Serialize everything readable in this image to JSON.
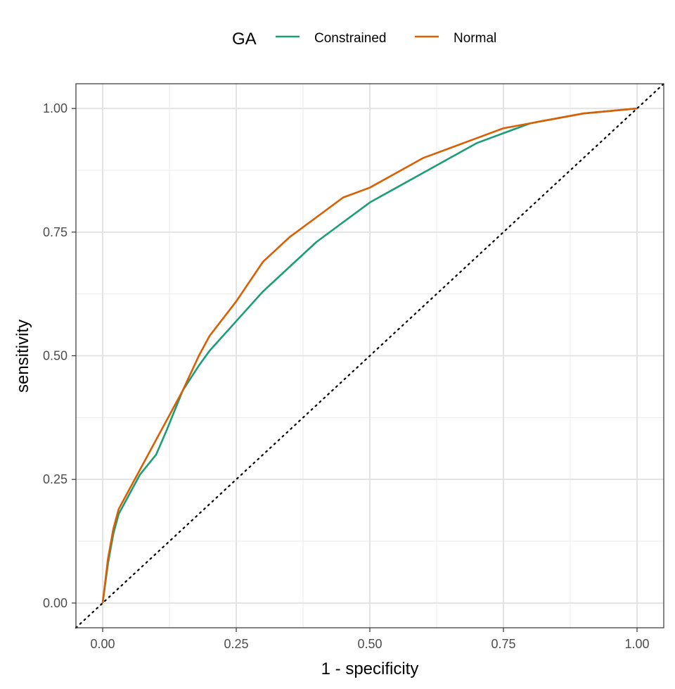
{
  "chart_data": {
    "type": "line",
    "xlabel": "1 - specificity",
    "ylabel": "sensitivity",
    "legend_title": "GA",
    "legend_position": "top",
    "grid": true,
    "xlim": [
      -0.05,
      1.05
    ],
    "ylim": [
      -0.05,
      1.05
    ],
    "x_ticks": [
      "0.00",
      "0.25",
      "0.50",
      "0.75",
      "1.00"
    ],
    "y_ticks": [
      "0.00",
      "0.25",
      "0.50",
      "0.75",
      "1.00"
    ],
    "reference_line": {
      "style": "dotted",
      "slope": 1,
      "intercept": 0,
      "color": "#000000"
    },
    "series": [
      {
        "name": "Constrained",
        "color": "#1b9e77",
        "x": [
          0.0,
          0.01,
          0.02,
          0.03,
          0.05,
          0.07,
          0.1,
          0.12,
          0.15,
          0.18,
          0.2,
          0.25,
          0.3,
          0.35,
          0.4,
          0.45,
          0.5,
          0.55,
          0.6,
          0.65,
          0.7,
          0.75,
          0.8,
          0.85,
          0.9,
          0.95,
          1.0
        ],
        "y": [
          0.0,
          0.08,
          0.14,
          0.18,
          0.22,
          0.26,
          0.3,
          0.35,
          0.43,
          0.48,
          0.51,
          0.57,
          0.63,
          0.68,
          0.73,
          0.77,
          0.81,
          0.84,
          0.87,
          0.9,
          0.93,
          0.95,
          0.97,
          0.98,
          0.99,
          0.995,
          1.0
        ]
      },
      {
        "name": "Normal",
        "color": "#d95f02",
        "x": [
          0.0,
          0.01,
          0.02,
          0.03,
          0.05,
          0.07,
          0.1,
          0.12,
          0.15,
          0.18,
          0.2,
          0.25,
          0.3,
          0.35,
          0.4,
          0.45,
          0.5,
          0.55,
          0.6,
          0.65,
          0.7,
          0.75,
          0.8,
          0.85,
          0.9,
          0.95,
          1.0
        ],
        "y": [
          0.0,
          0.09,
          0.15,
          0.19,
          0.23,
          0.27,
          0.33,
          0.37,
          0.43,
          0.5,
          0.54,
          0.61,
          0.69,
          0.74,
          0.78,
          0.82,
          0.84,
          0.87,
          0.9,
          0.92,
          0.94,
          0.96,
          0.97,
          0.98,
          0.99,
          0.995,
          1.0
        ]
      }
    ]
  }
}
